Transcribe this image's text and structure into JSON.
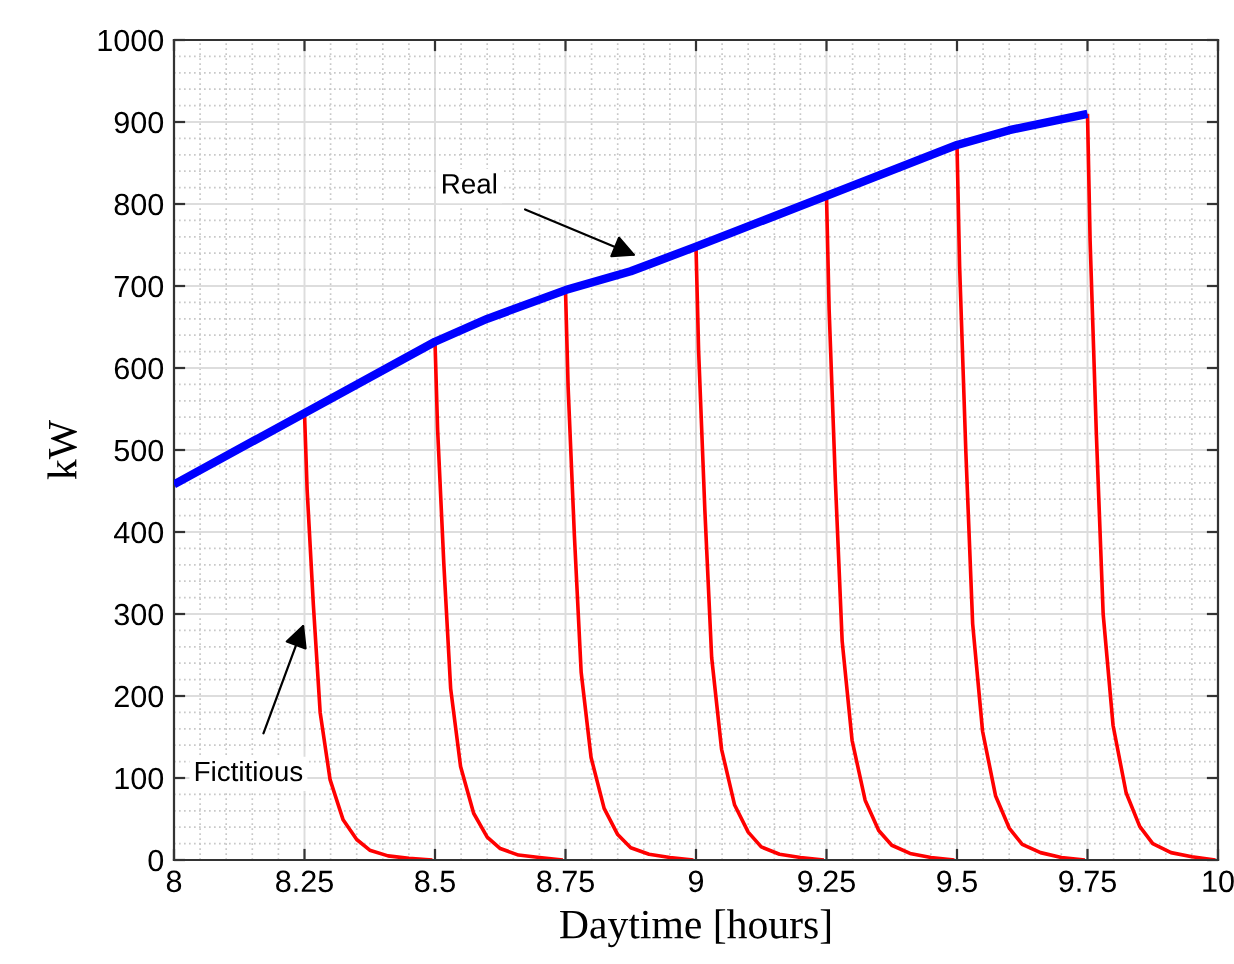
{
  "chart_data": {
    "type": "line",
    "xlabel": "Daytime [hours]",
    "ylabel": "kW",
    "xlim": [
      8,
      10
    ],
    "ylim": [
      0,
      1000
    ],
    "xticks": [
      8,
      8.25,
      8.5,
      8.75,
      9,
      9.25,
      9.5,
      9.75,
      10
    ],
    "yticks": [
      0,
      100,
      200,
      300,
      400,
      500,
      600,
      700,
      800,
      900,
      1000
    ],
    "grid": true,
    "series": [
      {
        "color": "#0000ff",
        "x": [
          8,
          8.25,
          8.5,
          8.6,
          8.75,
          8.875,
          9,
          9.25,
          9.5,
          9.6,
          9.75
        ],
        "values": [
          458,
          545,
          632,
          660,
          695,
          718,
          748,
          810,
          872,
          890,
          910
        ]
      },
      {
        "color": "#ff0000",
        "x": [
          8.25,
          8.255,
          8.267,
          8.28,
          8.299,
          8.324,
          8.35,
          8.375,
          8.41,
          8.45,
          8.495
        ],
        "values": [
          545,
          452,
          311,
          180,
          98,
          49,
          25,
          12,
          5,
          2,
          0
        ]
      },
      {
        "color": "#ff0000",
        "x": [
          8.5,
          8.505,
          8.517,
          8.53,
          8.549,
          8.574,
          8.6,
          8.625,
          8.66,
          8.7,
          8.745
        ],
        "values": [
          632,
          525,
          360,
          209,
          114,
          57,
          28,
          14,
          6,
          3,
          0
        ]
      },
      {
        "color": "#ff0000",
        "x": [
          8.75,
          8.755,
          8.767,
          8.78,
          8.799,
          8.824,
          8.85,
          8.875,
          8.91,
          8.95,
          8.995
        ],
        "values": [
          695,
          577,
          396,
          229,
          125,
          63,
          31,
          15,
          7,
          3,
          0
        ]
      },
      {
        "color": "#ff0000",
        "x": [
          9,
          9.005,
          9.017,
          9.03,
          9.049,
          9.074,
          9.1,
          9.125,
          9.16,
          9.2,
          9.245
        ],
        "values": [
          748,
          621,
          426,
          247,
          135,
          67,
          34,
          16,
          7,
          3,
          0
        ]
      },
      {
        "color": "#ff0000",
        "x": [
          9.25,
          9.255,
          9.267,
          9.28,
          9.299,
          9.324,
          9.35,
          9.375,
          9.41,
          9.45,
          9.495
        ],
        "values": [
          810,
          672,
          462,
          267,
          146,
          73,
          36,
          18,
          8,
          3,
          0
        ]
      },
      {
        "color": "#ff0000",
        "x": [
          9.5,
          9.505,
          9.517,
          9.53,
          9.549,
          9.574,
          9.6,
          9.625,
          9.66,
          9.7,
          9.745
        ],
        "values": [
          872,
          724,
          497,
          288,
          157,
          78,
          39,
          19,
          9,
          3,
          0
        ]
      },
      {
        "color": "#ff0000",
        "x": [
          9.75,
          9.755,
          9.767,
          9.78,
          9.799,
          9.824,
          9.85,
          9.875,
          9.91,
          9.95,
          9.995
        ],
        "values": [
          910,
          755,
          519,
          300,
          164,
          82,
          41,
          20,
          9,
          4,
          0
        ]
      }
    ],
    "annotations": [
      {
        "text": "Real",
        "x": 8.885,
        "y": 737
      },
      {
        "text": "Fictitious",
        "x": 8.249,
        "y": 288
      }
    ]
  }
}
